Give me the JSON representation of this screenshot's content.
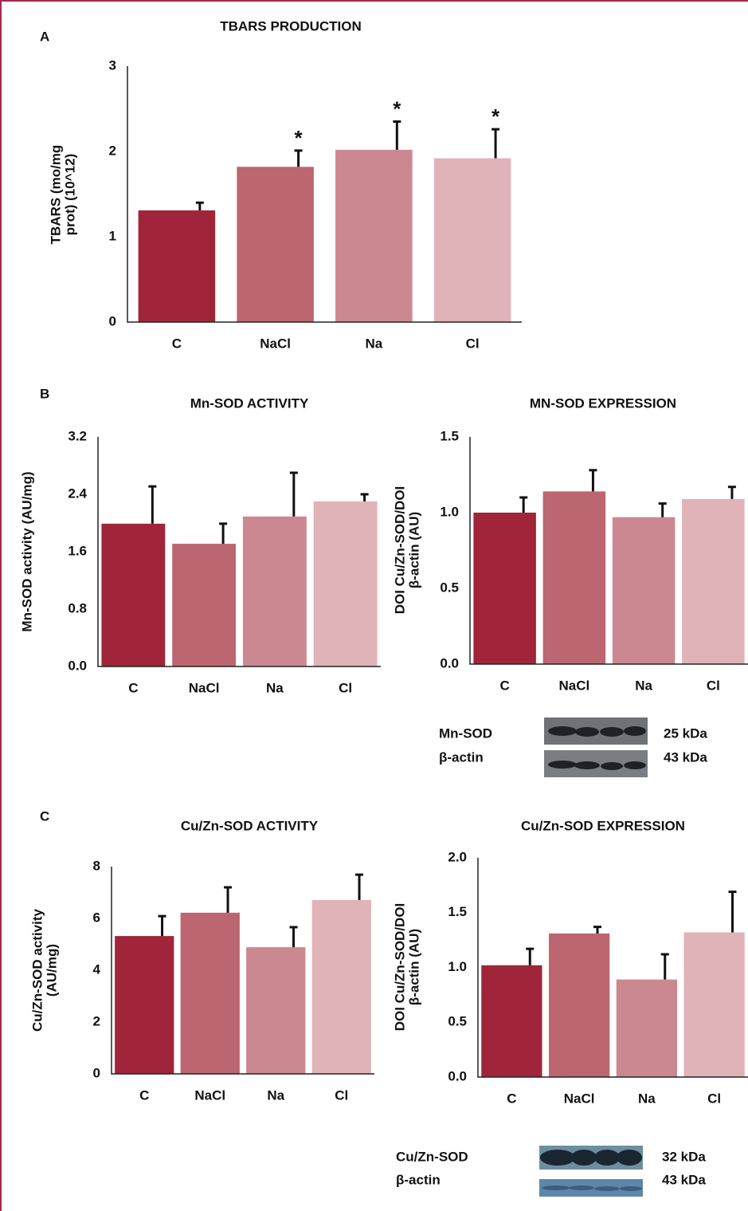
{
  "panel_labels": [
    "A",
    "B",
    "C"
  ],
  "chart_data": [
    {
      "type": "bar",
      "title": "TBARS PRODUCTION",
      "ylabel": [
        "TBARS (mo/mg",
        "prot) (10^12)"
      ],
      "categories": [
        "C",
        "NaCl",
        "Na",
        "Cl"
      ],
      "values": [
        1.31,
        1.82,
        2.02,
        1.92
      ],
      "errors": [
        0.09,
        0.19,
        0.33,
        0.34
      ],
      "annotations": [
        null,
        "*",
        "*",
        "*"
      ],
      "colors": [
        "#a0253a",
        "#bb6670",
        "#cc8890",
        "#dfb3b8"
      ],
      "ylim": [
        0,
        3
      ],
      "yticks": [
        0,
        1,
        2,
        3
      ]
    },
    {
      "type": "bar",
      "title": "Mn-SOD ACTIVITY",
      "ylabel": [
        "Mn-SOD activity (AU/mg)"
      ],
      "categories": [
        "C",
        "NaCl",
        "Na",
        "Cl"
      ],
      "values": [
        1.99,
        1.71,
        2.09,
        2.3
      ],
      "errors": [
        0.52,
        0.28,
        0.61,
        0.1
      ],
      "colors": [
        "#a0253a",
        "#bb6670",
        "#cc8890",
        "#dfb3b8"
      ],
      "ylim": [
        0,
        3.2
      ],
      "yticks": [
        {
          "value": 0,
          "label": "0.0"
        },
        0.8,
        1.6,
        2.4,
        3.2
      ]
    },
    {
      "type": "bar",
      "title": "MN-SOD EXPRESSION",
      "ylabel": [
        "DOI Cu/Zn-SOD/DOI",
        "β-actin (AU)"
      ],
      "categories": [
        "C",
        "NaCl",
        "Na",
        "Cl"
      ],
      "values": [
        1.0,
        1.14,
        0.97,
        1.09
      ],
      "errors": [
        0.1,
        0.14,
        0.09,
        0.08
      ],
      "colors": [
        "#a0253a",
        "#bb6670",
        "#cc8890",
        "#dfb3b8"
      ],
      "ylim": [
        0,
        1.5
      ],
      "yticks": [
        {
          "value": 0,
          "label": "0.0"
        },
        0.5,
        {
          "value": 1,
          "label": "1.0"
        },
        1.5
      ]
    },
    {
      "type": "bar",
      "title": "Cu/Zn-SOD ACTIVITY",
      "ylabel": [
        "Cu/Zn-SOD activity",
        "(AU/mg)"
      ],
      "categories": [
        "C",
        "NaCl",
        "Na",
        "Cl"
      ],
      "values": [
        5.32,
        6.22,
        4.89,
        6.71
      ],
      "errors": [
        0.77,
        0.98,
        0.77,
        0.98
      ],
      "colors": [
        "#a0253a",
        "#bb6670",
        "#cc8890",
        "#dfb3b8"
      ],
      "ylim": [
        0,
        8
      ],
      "yticks": [
        0,
        2,
        4,
        6,
        8
      ]
    },
    {
      "type": "bar",
      "title": "Cu/Zn-SOD EXPRESSION",
      "ylabel": [
        "DOI Cu/Zn-SOD/DOI",
        "β-actin (AU)"
      ],
      "categories": [
        "C",
        "NaCl",
        "Na",
        "Cl"
      ],
      "values": [
        1.02,
        1.31,
        0.89,
        1.32
      ],
      "errors": [
        0.15,
        0.06,
        0.23,
        0.37
      ],
      "colors": [
        "#a0253a",
        "#bb6670",
        "#cc8890",
        "#dfb3b8"
      ],
      "ylim": [
        0,
        2
      ],
      "yticks": [
        {
          "value": 0,
          "label": "0.0"
        },
        0.5,
        {
          "value": 1,
          "label": "1.0"
        },
        1.5,
        {
          "value": 2,
          "label": "2.0"
        }
      ]
    }
  ],
  "blots": [
    {
      "labels": [
        "Mn-SOD",
        "β-actin"
      ],
      "sizes": [
        "25 kDa",
        "43 kDa"
      ]
    },
    {
      "labels": [
        "Cu/Zn-SOD",
        "β-actin"
      ],
      "sizes": [
        "32 kDa",
        "43 kDa"
      ]
    }
  ]
}
